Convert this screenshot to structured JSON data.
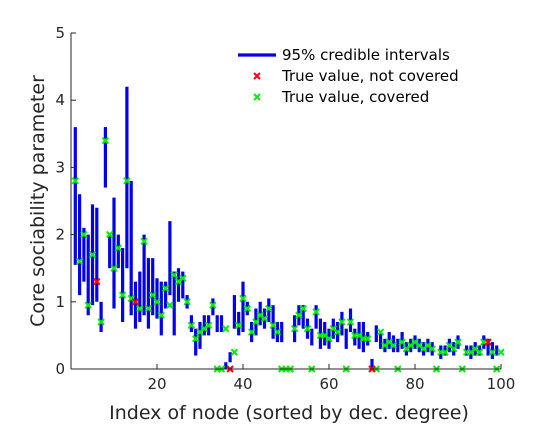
{
  "chart_data": {
    "type": "scatter",
    "xlabel": "Index of node (sorted by dec. degree)",
    "ylabel": "Core sociability parameter",
    "xlim": [
      0,
      100
    ],
    "ylim": [
      0,
      5
    ],
    "xticks": [
      20,
      40,
      60,
      80,
      100
    ],
    "yticks": [
      0,
      1,
      2,
      3,
      4,
      5
    ],
    "grid": false,
    "legend_position": "top-right",
    "colors": {
      "interval": "#0000ee",
      "not_covered": "#ff0000",
      "covered": "#00ee00",
      "axis": "#262626"
    },
    "legend": [
      {
        "label": "95% credible intervals",
        "marker": "line",
        "color": "#0000ee"
      },
      {
        "label": "True value, not covered",
        "marker": "x",
        "color": "#ff0000"
      },
      {
        "label": "True value, covered",
        "marker": "x",
        "color": "#00ee00"
      }
    ],
    "intervals": [
      {
        "x": 1,
        "low": 1.55,
        "high": 3.6
      },
      {
        "x": 2,
        "low": 1.1,
        "high": 2.6
      },
      {
        "x": 3,
        "low": 1.3,
        "high": 2.1
      },
      {
        "x": 4,
        "low": 0.8,
        "high": 2.0
      },
      {
        "x": 5,
        "low": 0.95,
        "high": 2.45
      },
      {
        "x": 6,
        "low": 1.0,
        "high": 2.4
      },
      {
        "x": 7,
        "low": 0.55,
        "high": 1.0
      },
      {
        "x": 8,
        "low": 2.7,
        "high": 3.6
      },
      {
        "x": 9,
        "low": 1.5,
        "high": 2.0
      },
      {
        "x": 10,
        "low": 0.9,
        "high": 2.55
      },
      {
        "x": 11,
        "low": 1.5,
        "high": 2.0
      },
      {
        "x": 12,
        "low": 0.7,
        "high": 1.8
      },
      {
        "x": 13,
        "low": 1.5,
        "high": 4.2
      },
      {
        "x": 14,
        "low": 0.8,
        "high": 2.8
      },
      {
        "x": 15,
        "low": 0.6,
        "high": 1.3
      },
      {
        "x": 16,
        "low": 0.7,
        "high": 1.45
      },
      {
        "x": 17,
        "low": 0.8,
        "high": 2.0
      },
      {
        "x": 18,
        "low": 0.6,
        "high": 1.65
      },
      {
        "x": 19,
        "low": 0.8,
        "high": 1.65
      },
      {
        "x": 20,
        "low": 0.75,
        "high": 1.35
      },
      {
        "x": 21,
        "low": 0.5,
        "high": 1.3
      },
      {
        "x": 22,
        "low": 0.9,
        "high": 1.3
      },
      {
        "x": 23,
        "low": 1.1,
        "high": 2.2
      },
      {
        "x": 24,
        "low": 0.5,
        "high": 1.45
      },
      {
        "x": 25,
        "low": 1.0,
        "high": 1.5
      },
      {
        "x": 26,
        "low": 1.05,
        "high": 1.45
      },
      {
        "x": 27,
        "low": 0.9,
        "high": 1.1
      },
      {
        "x": 28,
        "low": 0.55,
        "high": 0.8
      },
      {
        "x": 29,
        "low": 0.2,
        "high": 0.6
      },
      {
        "x": 30,
        "low": 0.3,
        "high": 0.7
      },
      {
        "x": 31,
        "low": 0.5,
        "high": 0.8
      },
      {
        "x": 32,
        "low": 0.5,
        "high": 0.8
      },
      {
        "x": 33,
        "low": 0.8,
        "high": 1.05
      },
      {
        "x": 34,
        "low": 0.55,
        "high": 0.8
      },
      {
        "x": 35,
        "low": 0.55,
        "high": 0.8
      },
      {
        "x": 36,
        "low": 0.0,
        "high": 0.1
      },
      {
        "x": 37,
        "low": 0.1,
        "high": 0.25
      },
      {
        "x": 38,
        "low": 0.6,
        "high": 1.1
      },
      {
        "x": 39,
        "low": 0.5,
        "high": 0.85
      },
      {
        "x": 40,
        "low": 0.55,
        "high": 1.3
      },
      {
        "x": 41,
        "low": 0.8,
        "high": 1.0
      },
      {
        "x": 42,
        "low": 0.4,
        "high": 0.7
      },
      {
        "x": 43,
        "low": 0.5,
        "high": 0.9
      },
      {
        "x": 44,
        "low": 0.65,
        "high": 1.0
      },
      {
        "x": 45,
        "low": 0.6,
        "high": 0.9
      },
      {
        "x": 46,
        "low": 0.7,
        "high": 1.05
      },
      {
        "x": 47,
        "low": 0.45,
        "high": 0.95
      },
      {
        "x": 48,
        "low": 0.4,
        "high": 0.7
      },
      {
        "x": 49,
        "low": 0.4,
        "high": 0.7
      },
      {
        "x": 52,
        "low": 0.4,
        "high": 0.8
      },
      {
        "x": 53,
        "low": 0.65,
        "high": 0.95
      },
      {
        "x": 54,
        "low": 0.6,
        "high": 0.95
      },
      {
        "x": 55,
        "low": 0.45,
        "high": 0.75
      },
      {
        "x": 56,
        "low": 0.35,
        "high": 0.6
      },
      {
        "x": 57,
        "low": 0.6,
        "high": 0.95
      },
      {
        "x": 58,
        "low": 0.3,
        "high": 0.75
      },
      {
        "x": 59,
        "low": 0.35,
        "high": 0.7
      },
      {
        "x": 60,
        "low": 0.3,
        "high": 0.6
      },
      {
        "x": 61,
        "low": 0.45,
        "high": 0.75
      },
      {
        "x": 62,
        "low": 0.4,
        "high": 0.7
      },
      {
        "x": 63,
        "low": 0.5,
        "high": 0.85
      },
      {
        "x": 64,
        "low": 0.3,
        "high": 0.6
      },
      {
        "x": 65,
        "low": 0.55,
        "high": 0.9
      },
      {
        "x": 66,
        "low": 0.35,
        "high": 0.6
      },
      {
        "x": 67,
        "low": 0.3,
        "high": 0.7
      },
      {
        "x": 68,
        "low": 0.25,
        "high": 0.7
      },
      {
        "x": 69,
        "low": 0.35,
        "high": 0.55
      },
      {
        "x": 70,
        "low": 0.0,
        "high": 0.15
      },
      {
        "x": 71,
        "low": 0.4,
        "high": 0.65
      },
      {
        "x": 72,
        "low": 0.3,
        "high": 0.55
      },
      {
        "x": 73,
        "low": 0.25,
        "high": 0.45
      },
      {
        "x": 74,
        "low": 0.3,
        "high": 0.55
      },
      {
        "x": 75,
        "low": 0.25,
        "high": 0.5
      },
      {
        "x": 76,
        "low": 0.25,
        "high": 0.45
      },
      {
        "x": 77,
        "low": 0.3,
        "high": 0.55
      },
      {
        "x": 78,
        "low": 0.2,
        "high": 0.4
      },
      {
        "x": 79,
        "low": 0.25,
        "high": 0.45
      },
      {
        "x": 80,
        "low": 0.3,
        "high": 0.5
      },
      {
        "x": 81,
        "low": 0.25,
        "high": 0.45
      },
      {
        "x": 82,
        "low": 0.2,
        "high": 0.4
      },
      {
        "x": 83,
        "low": 0.25,
        "high": 0.45
      },
      {
        "x": 84,
        "low": 0.2,
        "high": 0.4
      },
      {
        "x": 86,
        "low": 0.15,
        "high": 0.35
      },
      {
        "x": 87,
        "low": 0.2,
        "high": 0.35
      },
      {
        "x": 88,
        "low": 0.25,
        "high": 0.45
      },
      {
        "x": 89,
        "low": 0.2,
        "high": 0.4
      },
      {
        "x": 90,
        "low": 0.3,
        "high": 0.5
      },
      {
        "x": 92,
        "low": 0.2,
        "high": 0.35
      },
      {
        "x": 93,
        "low": 0.15,
        "high": 0.35
      },
      {
        "x": 94,
        "low": 0.2,
        "high": 0.4
      },
      {
        "x": 95,
        "low": 0.2,
        "high": 0.35
      },
      {
        "x": 96,
        "low": 0.3,
        "high": 0.5
      },
      {
        "x": 97,
        "low": 0.2,
        "high": 0.45
      },
      {
        "x": 98,
        "low": 0.15,
        "high": 0.4
      },
      {
        "x": 99,
        "low": 0.2,
        "high": 0.35
      }
    ],
    "true_not_covered": [
      {
        "x": 6,
        "y": 1.3
      },
      {
        "x": 15,
        "y": 1.0
      },
      {
        "x": 37,
        "y": 0.0
      },
      {
        "x": 70,
        "y": 0.0
      },
      {
        "x": 97,
        "y": 0.4
      }
    ],
    "true_covered": [
      {
        "x": 1,
        "y": 2.8
      },
      {
        "x": 2,
        "y": 1.6
      },
      {
        "x": 3,
        "y": 2.0
      },
      {
        "x": 4,
        "y": 0.95
      },
      {
        "x": 5,
        "y": 1.7
      },
      {
        "x": 7,
        "y": 0.7
      },
      {
        "x": 8,
        "y": 3.4
      },
      {
        "x": 9,
        "y": 2.0
      },
      {
        "x": 10,
        "y": 1.5
      },
      {
        "x": 11,
        "y": 1.8
      },
      {
        "x": 12,
        "y": 1.1
      },
      {
        "x": 13,
        "y": 2.8
      },
      {
        "x": 14,
        "y": 1.05
      },
      {
        "x": 16,
        "y": 0.9
      },
      {
        "x": 17,
        "y": 1.9
      },
      {
        "x": 18,
        "y": 0.9
      },
      {
        "x": 19,
        "y": 1.1
      },
      {
        "x": 20,
        "y": 1.0
      },
      {
        "x": 21,
        "y": 0.8
      },
      {
        "x": 22,
        "y": 1.2
      },
      {
        "x": 23,
        "y": 0.95
      },
      {
        "x": 24,
        "y": 1.4
      },
      {
        "x": 25,
        "y": 1.3
      },
      {
        "x": 26,
        "y": 1.35
      },
      {
        "x": 27,
        "y": 1.0
      },
      {
        "x": 28,
        "y": 0.65
      },
      {
        "x": 29,
        "y": 0.45
      },
      {
        "x": 30,
        "y": 0.55
      },
      {
        "x": 31,
        "y": 0.6
      },
      {
        "x": 32,
        "y": 0.65
      },
      {
        "x": 33,
        "y": 0.95
      },
      {
        "x": 34,
        "y": 0.0
      },
      {
        "x": 35,
        "y": 0.0
      },
      {
        "x": 36,
        "y": 0.6
      },
      {
        "x": 38,
        "y": 0.25
      },
      {
        "x": 39,
        "y": 0.65
      },
      {
        "x": 40,
        "y": 1.05
      },
      {
        "x": 41,
        "y": 0.9
      },
      {
        "x": 42,
        "y": 0.55
      },
      {
        "x": 43,
        "y": 0.7
      },
      {
        "x": 44,
        "y": 0.8
      },
      {
        "x": 45,
        "y": 0.75
      },
      {
        "x": 46,
        "y": 0.9
      },
      {
        "x": 47,
        "y": 0.65
      },
      {
        "x": 48,
        "y": 0.55
      },
      {
        "x": 49,
        "y": 0.0
      },
      {
        "x": 50,
        "y": 0.0
      },
      {
        "x": 51,
        "y": 0.0
      },
      {
        "x": 52,
        "y": 0.6
      },
      {
        "x": 53,
        "y": 0.8
      },
      {
        "x": 54,
        "y": 0.9
      },
      {
        "x": 55,
        "y": 0.6
      },
      {
        "x": 56,
        "y": 0.0
      },
      {
        "x": 57,
        "y": 0.85
      },
      {
        "x": 58,
        "y": 0.5
      },
      {
        "x": 59,
        "y": 0.5
      },
      {
        "x": 60,
        "y": 0.45
      },
      {
        "x": 61,
        "y": 0.6
      },
      {
        "x": 62,
        "y": 0.55
      },
      {
        "x": 63,
        "y": 0.7
      },
      {
        "x": 64,
        "y": 0.0
      },
      {
        "x": 65,
        "y": 0.7
      },
      {
        "x": 66,
        "y": 0.5
      },
      {
        "x": 67,
        "y": 0.5
      },
      {
        "x": 68,
        "y": 0.45
      },
      {
        "x": 69,
        "y": 0.45
      },
      {
        "x": 71,
        "y": 0.0
      },
      {
        "x": 72,
        "y": 0.55
      },
      {
        "x": 73,
        "y": 0.35
      },
      {
        "x": 74,
        "y": 0.4
      },
      {
        "x": 75,
        "y": 0.35
      },
      {
        "x": 76,
        "y": 0.0
      },
      {
        "x": 77,
        "y": 0.4
      },
      {
        "x": 78,
        "y": 0.3
      },
      {
        "x": 79,
        "y": 0.35
      },
      {
        "x": 80,
        "y": 0.4
      },
      {
        "x": 81,
        "y": 0.35
      },
      {
        "x": 82,
        "y": 0.3
      },
      {
        "x": 83,
        "y": 0.35
      },
      {
        "x": 84,
        "y": 0.3
      },
      {
        "x": 85,
        "y": 0.0
      },
      {
        "x": 86,
        "y": 0.25
      },
      {
        "x": 87,
        "y": 0.25
      },
      {
        "x": 88,
        "y": 0.35
      },
      {
        "x": 89,
        "y": 0.3
      },
      {
        "x": 90,
        "y": 0.4
      },
      {
        "x": 91,
        "y": 0.0
      },
      {
        "x": 92,
        "y": 0.25
      },
      {
        "x": 93,
        "y": 0.25
      },
      {
        "x": 94,
        "y": 0.3
      },
      {
        "x": 95,
        "y": 0.25
      },
      {
        "x": 96,
        "y": 0.4
      },
      {
        "x": 98,
        "y": 0.25
      },
      {
        "x": 99,
        "y": 0.0
      },
      {
        "x": 100,
        "y": 0.25
      }
    ]
  }
}
